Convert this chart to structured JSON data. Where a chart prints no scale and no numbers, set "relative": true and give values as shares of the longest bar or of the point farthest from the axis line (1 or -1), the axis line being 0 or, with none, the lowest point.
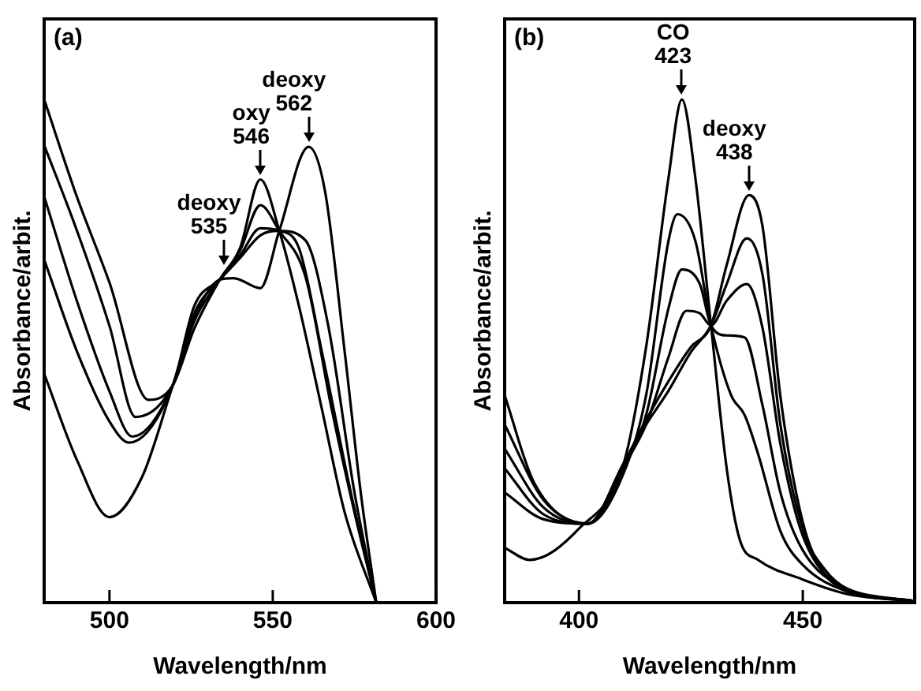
{
  "chart_data": [
    {
      "type": "line",
      "title": "(a)",
      "xlabel": "Wavelength/nm",
      "ylabel": "Absorbance/arbit.",
      "xlim": [
        480,
        600
      ],
      "xticks": [
        500,
        550,
        600
      ],
      "relative": true,
      "marker": "none",
      "line_style": "solid",
      "legend": false,
      "grid": false,
      "series": [
        {
          "color": "#000000",
          "x": [
            480,
            490,
            500,
            512,
            519.4,
            526,
            533.8,
            540,
            546.2,
            552,
            558,
            565,
            572,
            581.7
          ],
          "values": [
            1.0,
            0.807,
            0.636,
            0.403,
            0.432,
            0.545,
            0.642,
            0.705,
            0.841,
            0.739,
            0.59,
            0.386,
            0.18,
            0
          ]
        },
        {
          "color": "#000000",
          "x": [
            480,
            490,
            500,
            508,
            519.4,
            526,
            533.8,
            540,
            546.2,
            552,
            560,
            568,
            575,
            581.7
          ],
          "values": [
            0.909,
            0.74,
            0.55,
            0.369,
            0.432,
            0.56,
            0.642,
            0.7,
            0.79,
            0.739,
            0.648,
            0.386,
            0.18,
            0
          ]
        },
        {
          "color": "#000000",
          "x": [
            480,
            490,
            500,
            507,
            519.4,
            526,
            533.8,
            540,
            546.2,
            552,
            558,
            565,
            574,
            581.7
          ],
          "values": [
            0.807,
            0.6,
            0.42,
            0.33,
            0.432,
            0.575,
            0.642,
            0.69,
            0.744,
            0.739,
            0.705,
            0.5,
            0.216,
            0
          ]
        },
        {
          "color": "#000000",
          "x": [
            480,
            490,
            500,
            506,
            519.4,
            526,
            533.8,
            540,
            546.2,
            552,
            560,
            567,
            575,
            581.7
          ],
          "values": [
            0.682,
            0.5,
            0.36,
            0.318,
            0.432,
            0.59,
            0.642,
            0.685,
            0.73,
            0.739,
            0.72,
            0.55,
            0.22,
            0
          ]
        },
        {
          "color": "#000000",
          "x": [
            480,
            490,
            500,
            510,
            519.4,
            527,
            533.8,
            538,
            546.2,
            552,
            561,
            566,
            572,
            577,
            581.7
          ],
          "values": [
            0.455,
            0.284,
            0.17,
            0.25,
            0.432,
            0.58,
            0.642,
            0.645,
            0.625,
            0.739,
            0.906,
            0.818,
            0.5,
            0.216,
            0
          ]
        }
      ],
      "annotations": [
        {
          "text": "deoxy\n535",
          "x": 535,
          "y": 0.66
        },
        {
          "text": "oxy\n546",
          "x": 546.2,
          "y": 0.841
        },
        {
          "text": "deoxy\n562",
          "x": 561,
          "y": 0.906
        }
      ]
    },
    {
      "type": "line",
      "title": "(b)",
      "xlabel": "Wavelength/nm",
      "ylabel": "Absorbance/arbit.",
      "xlim": [
        383.4,
        475
      ],
      "xticks": [
        400,
        450
      ],
      "relative": true,
      "marker": "none",
      "line_style": "solid",
      "legend": false,
      "grid": false,
      "series": [
        {
          "color": "#000000",
          "x": [
            383.4,
            389,
            400,
            410,
            415,
            420,
            423,
            426,
            429.5,
            433,
            436,
            440,
            450,
            460,
            475
          ],
          "values": [
            0.109,
            0.085,
            0.147,
            0.277,
            0.508,
            0.844,
            1,
            0.844,
            0.551,
            0.267,
            0.123,
            0.085,
            0.046,
            0.017,
            0.003
          ]
        },
        {
          "color": "#000000",
          "x": [
            383.4,
            392,
            402,
            410,
            415,
            420,
            422,
            426,
            429.5,
            434,
            437,
            440,
            445,
            450,
            460,
            475
          ],
          "values": [
            0.219,
            0.166,
            0.157,
            0.258,
            0.412,
            0.719,
            0.772,
            0.719,
            0.551,
            0.412,
            0.373,
            0.296,
            0.142,
            0.075,
            0.022,
            0.003
          ]
        },
        {
          "color": "#000000",
          "x": [
            383.4,
            392,
            402,
            410,
            415,
            420,
            423,
            427,
            429.5,
            433,
            437,
            441,
            445,
            450,
            460,
            475
          ],
          "values": [
            0.267,
            0.176,
            0.157,
            0.267,
            0.373,
            0.585,
            0.662,
            0.633,
            0.551,
            0.531,
            0.527,
            0.392,
            0.219,
            0.104,
            0.027,
            0.003
          ]
        },
        {
          "color": "#000000",
          "x": [
            383.4,
            392,
            402,
            410,
            415,
            420,
            424,
            427,
            429.5,
            433,
            437.5,
            441,
            445,
            450,
            460,
            475
          ],
          "values": [
            0.306,
            0.19,
            0.157,
            0.272,
            0.354,
            0.488,
            0.58,
            0.575,
            0.551,
            0.6,
            0.633,
            0.546,
            0.315,
            0.133,
            0.027,
            0.003
          ]
        },
        {
          "color": "#000000",
          "x": [
            383.4,
            392,
            402,
            410,
            415,
            420,
            425,
            429.5,
            433,
            437.5,
            441,
            445,
            450,
            455,
            460,
            475
          ],
          "values": [
            0.354,
            0.205,
            0.157,
            0.277,
            0.354,
            0.421,
            0.498,
            0.551,
            0.633,
            0.724,
            0.652,
            0.354,
            0.147,
            0.065,
            0.027,
            0.003
          ]
        },
        {
          "color": "#000000",
          "x": [
            383.4,
            390,
            402,
            410,
            415,
            420,
            425,
            429.5,
            433,
            438,
            441,
            445,
            450,
            455,
            460,
            475
          ],
          "values": [
            0.412,
            0.238,
            0.157,
            0.277,
            0.363,
            0.44,
            0.508,
            0.551,
            0.671,
            0.81,
            0.748,
            0.41,
            0.16,
            0.056,
            0.027,
            0.003
          ]
        }
      ],
      "annotations": [
        {
          "text": "CO\n423",
          "x": 423,
          "y": 1
        },
        {
          "text": "deoxy\n438",
          "x": 438,
          "y": 0.81
        }
      ]
    }
  ]
}
